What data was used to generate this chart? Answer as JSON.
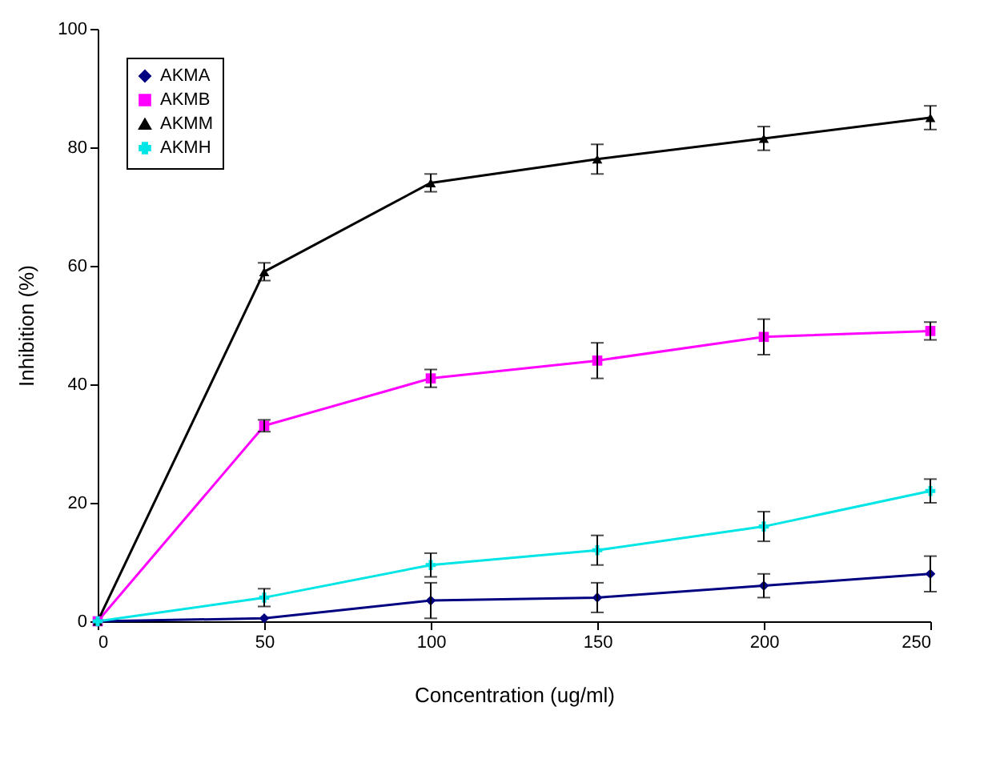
{
  "chart_data": {
    "type": "line",
    "xlabel": "Concentration (ug/ml)",
    "ylabel": "Inhibition (%)",
    "x": [
      0,
      50,
      100,
      150,
      200,
      250
    ],
    "series": [
      {
        "name": "AKMA",
        "color": "#000080",
        "marker": "diamond",
        "values": [
          0,
          0.5,
          3.5,
          4,
          6,
          8
        ],
        "errors": [
          null,
          null,
          3,
          2.5,
          2,
          3
        ]
      },
      {
        "name": "AKMB",
        "color": "#ff00ff",
        "marker": "square",
        "values": [
          0,
          33,
          41,
          44,
          48,
          49
        ],
        "errors": [
          null,
          1,
          1.5,
          3,
          3,
          1.5
        ]
      },
      {
        "name": "AKMM",
        "color": "#000000",
        "marker": "triangle",
        "values": [
          0,
          59,
          74,
          78,
          81.5,
          85
        ],
        "errors": [
          null,
          1.5,
          1.5,
          2.5,
          2,
          2
        ]
      },
      {
        "name": "AKMH",
        "color": "#00e5e5",
        "marker": "cross",
        "values": [
          0,
          4,
          9.5,
          12,
          16,
          22
        ],
        "errors": [
          null,
          1.5,
          2,
          2.5,
          2.5,
          2
        ]
      }
    ],
    "xlim": [
      0,
      250
    ],
    "xticks": [
      0,
      50,
      100,
      150,
      200,
      250
    ],
    "ylim": [
      0,
      100
    ],
    "yticks": [
      0,
      20,
      40,
      60,
      80,
      100
    ],
    "grid": false,
    "legend": "top left",
    "line_style": "solid"
  }
}
